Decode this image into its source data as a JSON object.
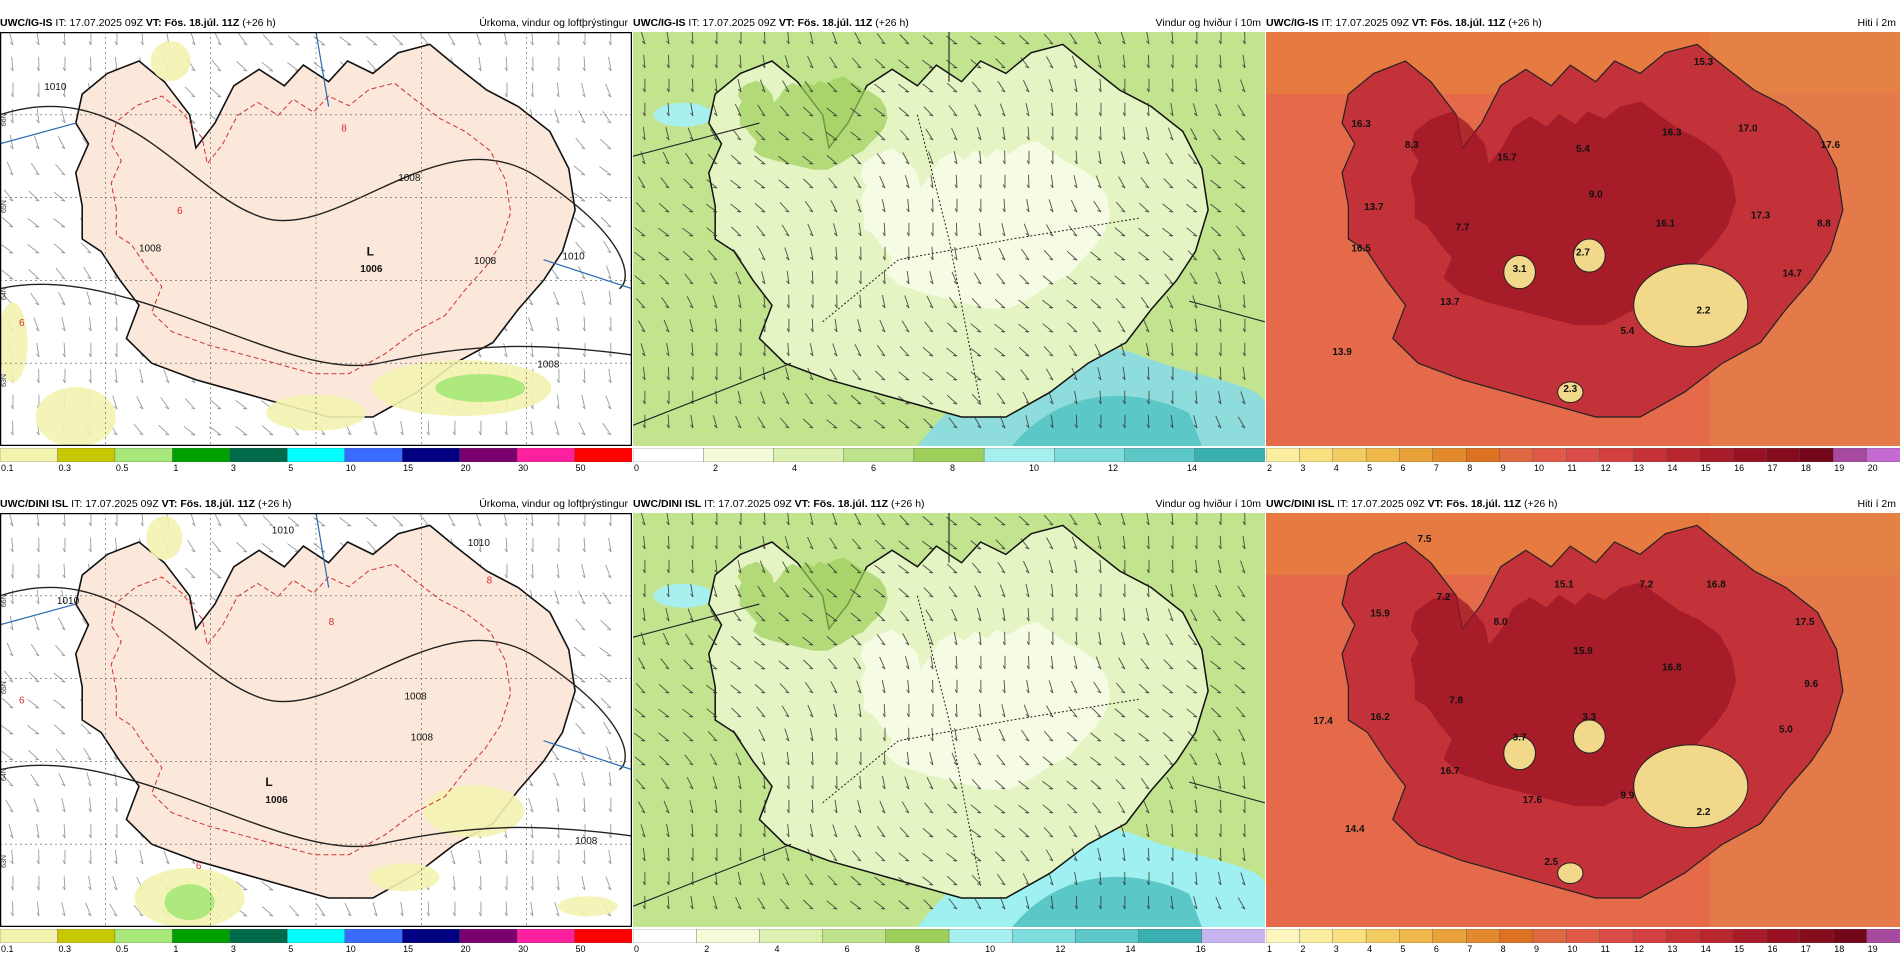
{
  "rows": [
    {
      "model": "UWC/IG-IS",
      "panels": [
        {
          "header": {
            "model": "UWC/IG-IS",
            "it_label": "IT:",
            "it": "17.07.2025 09Z",
            "vt_label": "VT:",
            "vt": "Fös. 18.júl. 11Z",
            "lead": "(+26 h)"
          },
          "title": "Úrkoma, vindur og loftþrýstingur",
          "legend": [
            "0.1",
            "0.3",
            "0.5",
            "1",
            "3",
            "5",
            "10",
            "15",
            "20",
            "30",
            "50"
          ],
          "legend_colors": [
            "#f3f3b0",
            "#c8c800",
            "#a6e87a",
            "#00a000",
            "#006a4a",
            "#00ffff",
            "#3a6bff",
            "#000080",
            "#7a0070",
            "#ff20a0",
            "#ff0000"
          ],
          "labels": [
            {
              "t": "1010"
            },
            {
              "t": "1008"
            },
            {
              "t": "1008"
            },
            {
              "t": "1006"
            },
            {
              "t": "1008"
            },
            {
              "t": "1008"
            },
            {
              "t": "1010"
            },
            {
              "t": "8"
            },
            {
              "t": "6"
            },
            {
              "t": "6"
            },
            {
              "t": "L"
            }
          ],
          "grid_labels": [
            "66N",
            "65N",
            "64N",
            "63N"
          ]
        },
        {
          "header": {
            "model": "UWC/IG-IS",
            "it_label": "IT:",
            "it": "17.07.2025 09Z",
            "vt_label": "VT:",
            "vt": "Fös. 18.júl. 11Z",
            "lead": "(+26 h)"
          },
          "title": "Vindur og hviður í 10m",
          "legend": [
            "0",
            "2",
            "4",
            "6",
            "8",
            "10",
            "12",
            "14"
          ],
          "legend_colors": [
            "#ffffff",
            "#f3fbd8",
            "#dcf0b0",
            "#bfe38a",
            "#9dcf5a",
            "#a8f0f0",
            "#7fdcdc",
            "#5cc7c7",
            "#3ab0b0"
          ]
        },
        {
          "header": {
            "model": "UWC/IG-IS",
            "it_label": "IT:",
            "it": "17.07.2025 09Z",
            "vt_label": "VT:",
            "vt": "Fös. 18.júl. 11Z",
            "lead": "(+26 h)"
          },
          "title": "Hiti í 2m",
          "legend": [
            "2",
            "3",
            "4",
            "5",
            "6",
            "7",
            "8",
            "9",
            "10",
            "11",
            "12",
            "13",
            "14",
            "15",
            "16",
            "17",
            "18",
            "19",
            "20"
          ],
          "legend_colors": [
            "#fbeea0",
            "#f8df80",
            "#f2cc60",
            "#eeb74a",
            "#e9a23a",
            "#e38a2c",
            "#dd7222",
            "#e06840",
            "#e05a48",
            "#db4d48",
            "#d24040",
            "#c63236",
            "#b8262e",
            "#a71c28",
            "#961222",
            "#850c1c",
            "#72071a",
            "#a64aa0",
            "#c46ad0"
          ],
          "labels": [
            {
              "t": "15.3"
            },
            {
              "t": "16.3"
            },
            {
              "t": "8.3"
            },
            {
              "t": "15.7"
            },
            {
              "t": "5.4"
            },
            {
              "t": "16.3"
            },
            {
              "t": "17.0"
            },
            {
              "t": "17.6"
            },
            {
              "t": "9.0"
            },
            {
              "t": "13.7"
            },
            {
              "t": "7.7"
            },
            {
              "t": "16.1"
            },
            {
              "t": "17.3"
            },
            {
              "t": "8.8"
            },
            {
              "t": "16.5"
            },
            {
              "t": "3.1"
            },
            {
              "t": "2.7"
            },
            {
              "t": "14.7"
            },
            {
              "t": "13.7"
            },
            {
              "t": "2.2"
            },
            {
              "t": "5.4"
            },
            {
              "t": "13.9"
            },
            {
              "t": "2.3"
            }
          ]
        }
      ]
    },
    {
      "model": "UWC/DINI ISL",
      "panels": [
        {
          "header": {
            "model": "UWC/DINI ISL",
            "it_label": "IT:",
            "it": "17.07.2025 09Z",
            "vt_label": "VT:",
            "vt": "Fös. 18.júl. 11Z",
            "lead": "(+26 h)"
          },
          "title": "Úrkoma, vindur og loftþrýstingur",
          "legend": [
            "0.1",
            "0.3",
            "0.5",
            "1",
            "3",
            "5",
            "10",
            "15",
            "20",
            "30",
            "50"
          ],
          "legend_colors": [
            "#f3f3b0",
            "#c8c800",
            "#a6e87a",
            "#00a000",
            "#006a4a",
            "#00ffff",
            "#3a6bff",
            "#000080",
            "#7a0070",
            "#ff20a0",
            "#ff0000"
          ],
          "labels": [
            {
              "t": "1010"
            },
            {
              "t": "1010"
            },
            {
              "t": "1010"
            },
            {
              "t": "1008"
            },
            {
              "t": "1008"
            },
            {
              "t": "1006"
            },
            {
              "t": "1008"
            },
            {
              "t": "8"
            },
            {
              "t": "8"
            },
            {
              "t": "6"
            },
            {
              "t": "6"
            },
            {
              "t": "L"
            }
          ],
          "grid_labels": [
            "66N",
            "65N",
            "64N",
            "63N"
          ]
        },
        {
          "header": {
            "model": "UWC/DINI ISL",
            "it_label": "IT:",
            "it": "17.07.2025 09Z",
            "vt_label": "VT:",
            "vt": "Fös. 18.júl. 11Z",
            "lead": "(+26 h)"
          },
          "title": "Vindur og hviður í 10m",
          "legend": [
            "0",
            "2",
            "4",
            "6",
            "8",
            "10",
            "12",
            "14",
            "16"
          ],
          "legend_colors": [
            "#ffffff",
            "#f3fbd8",
            "#dcf0b0",
            "#bfe38a",
            "#9dcf5a",
            "#a8f0f0",
            "#7fdcdc",
            "#5cc7c7",
            "#3ab0b0",
            "#c8b4f0"
          ]
        },
        {
          "header": {
            "model": "UWC/DINI ISL",
            "it_label": "IT:",
            "it": "17.07.2025 09Z",
            "vt_label": "VT:",
            "vt": "Fös. 18.júl. 11Z",
            "lead": "(+26 h)"
          },
          "title": "Hiti í 2m",
          "legend": [
            "1",
            "2",
            "3",
            "4",
            "5",
            "6",
            "7",
            "8",
            "9",
            "10",
            "11",
            "12",
            "13",
            "14",
            "15",
            "16",
            "17",
            "18",
            "19"
          ],
          "legend_colors": [
            "#fdf6c0",
            "#fbeea0",
            "#f8df80",
            "#f2cc60",
            "#eeb74a",
            "#e9a23a",
            "#e38a2c",
            "#dd7222",
            "#e06840",
            "#e05a48",
            "#db4d48",
            "#d24040",
            "#c63236",
            "#b8262e",
            "#a71c28",
            "#961222",
            "#850c1c",
            "#72071a",
            "#a64aa0"
          ],
          "labels": [
            {
              "t": "7.5"
            },
            {
              "t": "15.9"
            },
            {
              "t": "7.2"
            },
            {
              "t": "8.0"
            },
            {
              "t": "15.1"
            },
            {
              "t": "7.2"
            },
            {
              "t": "16.8"
            },
            {
              "t": "17.5"
            },
            {
              "t": "15.9"
            },
            {
              "t": "16.8"
            },
            {
              "t": "7.8"
            },
            {
              "t": "9.6"
            },
            {
              "t": "17.4"
            },
            {
              "t": "16.2"
            },
            {
              "t": "3.7"
            },
            {
              "t": "3.3"
            },
            {
              "t": "5.0"
            },
            {
              "t": "16.7"
            },
            {
              "t": "17.6"
            },
            {
              "t": "9.9"
            },
            {
              "t": "2.2"
            },
            {
              "t": "14.4"
            },
            {
              "t": "2.5"
            }
          ]
        }
      ]
    }
  ]
}
